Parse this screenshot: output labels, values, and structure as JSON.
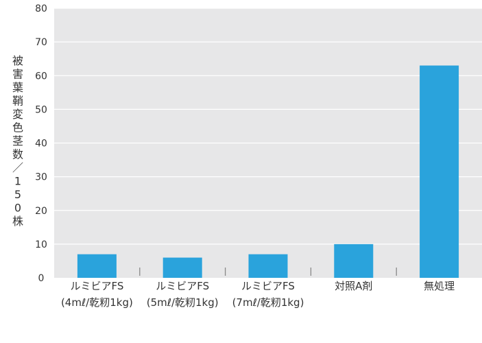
{
  "chart_data": {
    "type": "bar",
    "title": "",
    "xlabel": "",
    "ylabel": "被害葉鞘変色茎数／150株",
    "ylim": [
      0,
      80
    ],
    "yticks": [
      0,
      10,
      20,
      30,
      40,
      50,
      60,
      70,
      80
    ],
    "grid": true,
    "categories": [
      {
        "line1": "ルミビアFS",
        "line2": "(4mℓ/乾籾1kg)"
      },
      {
        "line1": "ルミビアFS",
        "line2": "(5mℓ/乾籾1kg)"
      },
      {
        "line1": "ルミビアFS",
        "line2": "(7mℓ/乾籾1kg)"
      },
      {
        "line1": "対照A剤",
        "line2": ""
      },
      {
        "line1": "無処理",
        "line2": ""
      }
    ],
    "values": [
      7,
      6,
      7,
      10,
      63
    ]
  },
  "colors": {
    "bar": "#2aa3dc",
    "plot_background": "#e7e7e8",
    "gridline": "#ffffff",
    "axis_tick": "#888888",
    "text": "#333333"
  }
}
